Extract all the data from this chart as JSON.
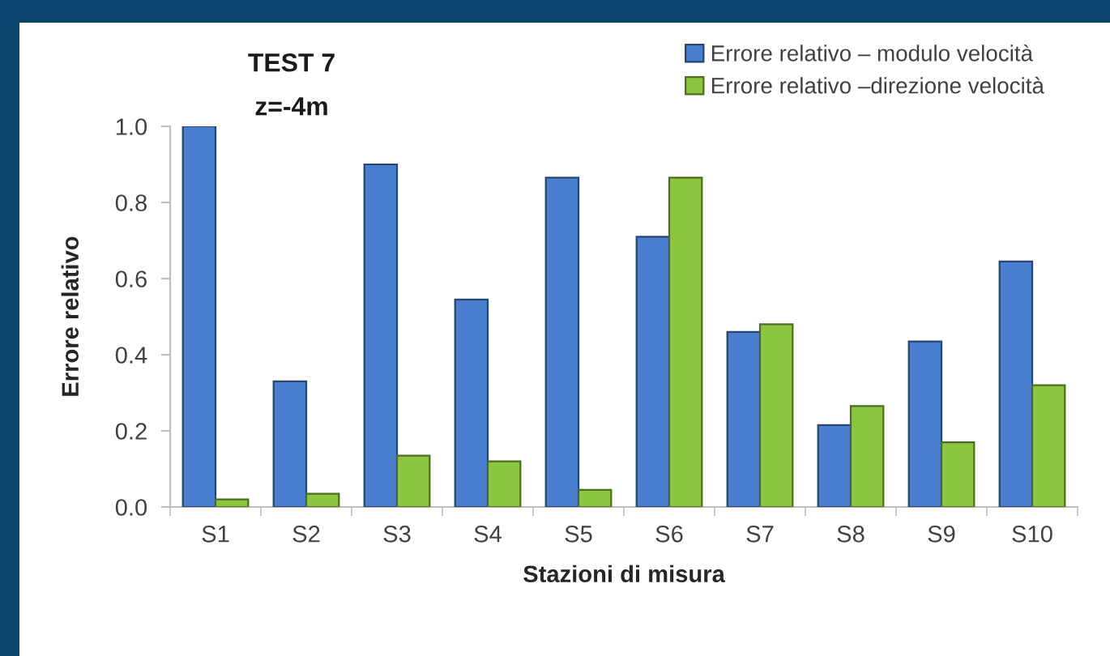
{
  "chart_data": {
    "type": "bar",
    "title": "TEST 7",
    "subtitle": "z=-4m",
    "xlabel": "Stazioni di misura",
    "ylabel": "Errore relativo",
    "categories": [
      "S1",
      "S2",
      "S3",
      "S4",
      "S5",
      "S6",
      "S7",
      "S8",
      "S9",
      "S10"
    ],
    "series": [
      {
        "name": "Errore relativo – modulo velocità",
        "color": "#4a7fd0",
        "values": [
          1.0,
          0.33,
          0.9,
          0.545,
          0.865,
          0.71,
          0.46,
          0.215,
          0.435,
          0.645
        ]
      },
      {
        "name": "Errore relativo –direzione velocità",
        "color": "#8cc63f",
        "values": [
          0.02,
          0.035,
          0.135,
          0.12,
          0.045,
          0.865,
          0.48,
          0.265,
          0.17,
          0.32
        ]
      }
    ],
    "ylim": [
      0,
      1
    ],
    "yticks": [
      {
        "value": 0,
        "label": "0.0"
      },
      {
        "value": 0.2,
        "label": "0.2"
      },
      {
        "value": 0.4,
        "label": "0.4"
      },
      {
        "value": 0.6,
        "label": "0.6"
      },
      {
        "value": 0.8,
        "label": "0.8"
      },
      {
        "value": 1,
        "label": "1.0"
      }
    ],
    "legend": "top right"
  }
}
